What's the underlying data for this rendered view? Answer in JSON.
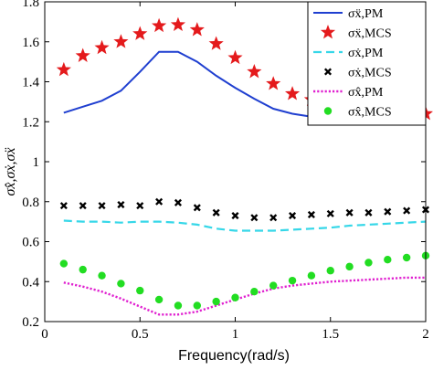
{
  "chart_data": {
    "type": "line",
    "xlabel": "Frequency(rad/s)",
    "ylabel": "σx̂,σẋ,σẍ",
    "xlim": [
      0,
      2
    ],
    "ylim": [
      0.2,
      1.8
    ],
    "xticks": [
      "0",
      "0.5",
      "1",
      "1.5",
      "2"
    ],
    "yticks": [
      "0.2",
      "0.4",
      "0.6",
      "0.8",
      "1",
      "1.2",
      "1.4",
      "1.6",
      "1.8"
    ],
    "legend_position": "top-right",
    "series": [
      {
        "name": "σẍ,PM",
        "style": "solid-line",
        "color": "#1f3fd0",
        "x": [
          0.1,
          0.2,
          0.3,
          0.4,
          0.5,
          0.6,
          0.7,
          0.8,
          0.9,
          1.0,
          1.1,
          1.2,
          1.3,
          1.4,
          1.5,
          1.6,
          1.7,
          1.8,
          1.9,
          2.0
        ],
        "y": [
          1.245,
          1.275,
          1.305,
          1.355,
          1.45,
          1.55,
          1.55,
          1.5,
          1.43,
          1.37,
          1.315,
          1.265,
          1.24,
          1.225,
          1.212,
          1.205,
          1.202,
          1.2,
          1.198,
          1.197
        ]
      },
      {
        "name": "σẍ,MCS",
        "style": "star-markers",
        "color": "#e41a1c",
        "x": [
          0.1,
          0.2,
          0.3,
          0.4,
          0.5,
          0.6,
          0.7,
          0.8,
          0.9,
          1.0,
          1.1,
          1.2,
          1.3,
          1.4,
          1.5,
          1.6,
          1.7,
          1.8,
          1.9,
          2.0
        ],
        "y": [
          1.46,
          1.53,
          1.57,
          1.6,
          1.64,
          1.68,
          1.685,
          1.66,
          1.59,
          1.52,
          1.45,
          1.39,
          1.34,
          1.31,
          1.3,
          1.29,
          1.27,
          1.26,
          1.25,
          1.24
        ]
      },
      {
        "name": "σẋ,PM",
        "style": "dashed-line",
        "color": "#36d7e8",
        "x": [
          0.1,
          0.2,
          0.3,
          0.4,
          0.5,
          0.6,
          0.7,
          0.8,
          0.9,
          1.0,
          1.1,
          1.2,
          1.3,
          1.4,
          1.5,
          1.6,
          1.7,
          1.8,
          1.9,
          2.0
        ],
        "y": [
          0.705,
          0.7,
          0.7,
          0.695,
          0.7,
          0.7,
          0.695,
          0.685,
          0.665,
          0.655,
          0.655,
          0.655,
          0.66,
          0.665,
          0.67,
          0.68,
          0.685,
          0.69,
          0.695,
          0.7
        ]
      },
      {
        "name": "σẋ,MCS",
        "style": "x-markers",
        "color": "#000000",
        "x": [
          0.1,
          0.2,
          0.3,
          0.4,
          0.5,
          0.6,
          0.7,
          0.8,
          0.9,
          1.0,
          1.1,
          1.2,
          1.3,
          1.4,
          1.5,
          1.6,
          1.7,
          1.8,
          1.9,
          2.0
        ],
        "y": [
          0.78,
          0.78,
          0.78,
          0.785,
          0.78,
          0.8,
          0.795,
          0.77,
          0.745,
          0.73,
          0.72,
          0.72,
          0.73,
          0.735,
          0.74,
          0.745,
          0.745,
          0.75,
          0.755,
          0.76
        ]
      },
      {
        "name": "σx̂,PM",
        "style": "dotted-line",
        "color": "#e020d0",
        "x": [
          0.1,
          0.2,
          0.3,
          0.4,
          0.5,
          0.6,
          0.7,
          0.8,
          0.9,
          1.0,
          1.1,
          1.2,
          1.3,
          1.4,
          1.5,
          1.6,
          1.7,
          1.8,
          1.9,
          2.0
        ],
        "y": [
          0.395,
          0.375,
          0.35,
          0.315,
          0.275,
          0.235,
          0.235,
          0.25,
          0.28,
          0.31,
          0.34,
          0.365,
          0.38,
          0.39,
          0.4,
          0.405,
          0.41,
          0.415,
          0.42,
          0.42
        ]
      },
      {
        "name": "σx̂,MCS",
        "style": "dot-markers",
        "color": "#22dd22",
        "x": [
          0.1,
          0.2,
          0.3,
          0.4,
          0.5,
          0.6,
          0.7,
          0.8,
          0.9,
          1.0,
          1.1,
          1.2,
          1.3,
          1.4,
          1.5,
          1.6,
          1.7,
          1.8,
          1.9,
          2.0
        ],
        "y": [
          0.49,
          0.46,
          0.43,
          0.39,
          0.355,
          0.31,
          0.28,
          0.28,
          0.3,
          0.32,
          0.35,
          0.38,
          0.405,
          0.43,
          0.455,
          0.475,
          0.495,
          0.51,
          0.52,
          0.53
        ]
      }
    ]
  }
}
